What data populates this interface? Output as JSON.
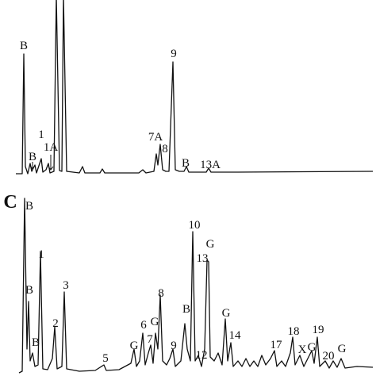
{
  "panel_label": "C",
  "top_trace": {
    "peak_labels": [
      "B",
      "B",
      "1",
      "1A",
      "7A",
      "8",
      "9",
      "B",
      "13A"
    ]
  },
  "bottom_trace": {
    "peak_labels": [
      "B",
      "1",
      "B",
      "B",
      "2",
      "3",
      "5",
      "G",
      "6",
      "G",
      "7",
      "8",
      "9",
      "B",
      "10",
      "13",
      "G",
      "12",
      "G",
      "14",
      "17",
      "18",
      "X",
      "G",
      "19",
      "20",
      "G"
    ]
  }
}
